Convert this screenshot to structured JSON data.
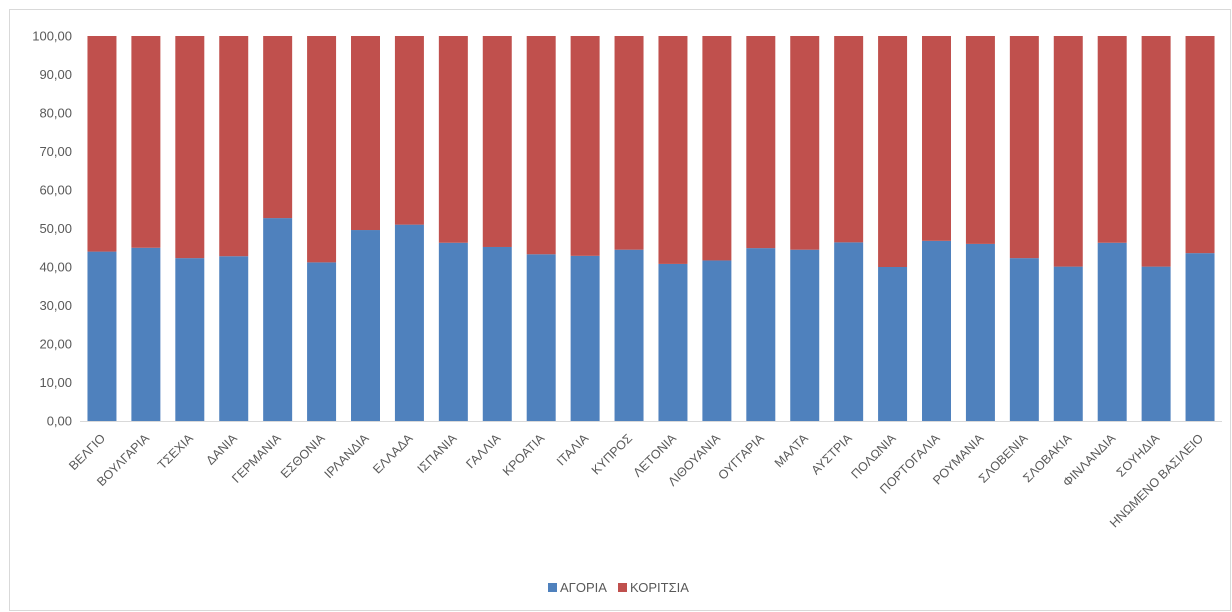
{
  "chart_data": {
    "type": "bar",
    "stacked": true,
    "title": "",
    "xlabel": "",
    "ylabel": "",
    "ylim": [
      0,
      100
    ],
    "ytick_step": 10,
    "ytick_labels": [
      "0,00",
      "10,00",
      "20,00",
      "30,00",
      "40,00",
      "50,00",
      "60,00",
      "70,00",
      "80,00",
      "90,00",
      "100,00"
    ],
    "grid": false,
    "legend_position": "bottom",
    "categories": [
      "ΒΕΛΓΙΟ",
      "ΒΟΥΛΓΑΡΙΑ",
      "ΤΣΕΧΙΑ",
      "ΔΑΝΙΑ",
      "ΓΕΡΜΑΝΙΑ",
      "ΕΣΘΟΝΙΑ",
      "ΙΡΛΑΝΔΙΑ",
      "ΕΛΛΑΔΑ",
      "ΙΣΠΑΝΙΑ",
      "ΓΑΛΛΙΑ",
      "ΚΡΟΑΤΙΑ",
      "ΙΤΑΛΙΑ",
      "ΚΥΠΡΟΣ",
      "ΛΕΤΟΝΙΑ",
      "ΛΙΘΟΥΑΝΙΑ",
      "ΟΥΓΓΑΡΙΑ",
      "ΜΑΛΤΑ",
      "ΑΥΣΤΡΙΑ",
      "ΠΟΛΩΝΙΑ",
      "ΠΟΡΤΟΓΑΛΙΑ",
      "ΡΟΥΜΑΝΙΑ",
      "ΣΛΟΒΕΝΙΑ",
      "ΣΛΟΒΑΚΙΑ",
      "ΦΙΝΛΑΝΔΙΑ",
      "ΣΟΥΗΔΙΑ",
      "ΗΝΩΜΕΝΟ ΒΑΣΙΛΕΙΟ"
    ],
    "series": [
      {
        "name": "ΑΓΟΡΙΑ",
        "color": "#4f81bd",
        "values": [
          44.0,
          45.0,
          42.3,
          42.8,
          52.7,
          41.2,
          49.6,
          51.0,
          46.3,
          45.2,
          43.3,
          42.9,
          44.5,
          40.8,
          41.7,
          44.9,
          44.5,
          46.4,
          40.0,
          46.8,
          46.0,
          42.3,
          40.1,
          46.3,
          40.1,
          43.6
        ]
      },
      {
        "name": "ΚΟΡΙΤΣΙΑ",
        "color": "#c0504d",
        "values": [
          56.0,
          55.0,
          57.7,
          57.2,
          47.3,
          58.8,
          50.4,
          49.0,
          53.7,
          54.8,
          56.7,
          57.1,
          55.5,
          59.2,
          58.3,
          55.1,
          55.5,
          53.6,
          60.0,
          53.2,
          54.0,
          57.7,
          59.9,
          53.7,
          59.9,
          56.4
        ]
      }
    ]
  }
}
